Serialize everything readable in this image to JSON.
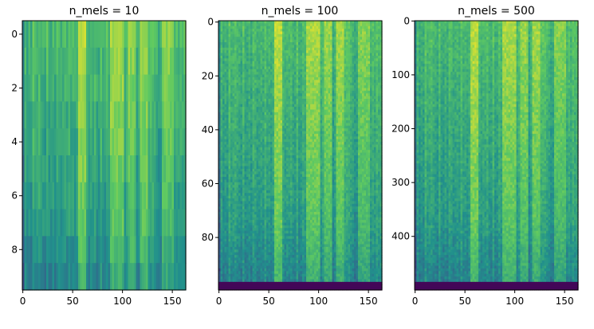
{
  "colormap": [
    "#440154",
    "#3b528b",
    "#21918c",
    "#5ec962",
    "#fde725"
  ],
  "chart_data": [
    {
      "type": "heatmap",
      "title": "n_mels = 10",
      "xlabel": "",
      "ylabel": "",
      "n_rows": 10,
      "n_cols": 164,
      "xlim": [
        -0.5,
        163.5
      ],
      "ylim": [
        9.5,
        -0.5
      ],
      "xticks": [
        0,
        50,
        100,
        150
      ],
      "xtick_labels": [
        "0",
        "50",
        "100",
        "150"
      ],
      "yticks": [
        0,
        2,
        4,
        6,
        8
      ],
      "ytick_labels": [
        "0",
        "2",
        "4",
        "6",
        "8"
      ],
      "grid": false,
      "colormap": "viridis"
    },
    {
      "type": "heatmap",
      "title": "n_mels = 100",
      "xlabel": "",
      "ylabel": "",
      "n_rows": 100,
      "n_cols": 164,
      "xlim": [
        -0.5,
        163.5
      ],
      "ylim": [
        99.5,
        -0.5
      ],
      "xticks": [
        0,
        50,
        100,
        150
      ],
      "xtick_labels": [
        "0",
        "50",
        "100",
        "150"
      ],
      "yticks": [
        0,
        20,
        40,
        60,
        80
      ],
      "ytick_labels": [
        "0",
        "20",
        "40",
        "60",
        "80"
      ],
      "grid": false,
      "colormap": "viridis"
    },
    {
      "type": "heatmap",
      "title": "n_mels = 500",
      "xlabel": "",
      "ylabel": "",
      "n_rows": 500,
      "n_cols": 164,
      "xlim": [
        -0.5,
        163.5
      ],
      "ylim": [
        499.5,
        -0.5
      ],
      "xticks": [
        0,
        50,
        100,
        150
      ],
      "xtick_labels": [
        "0",
        "50",
        "100",
        "150"
      ],
      "yticks": [
        0,
        100,
        200,
        300,
        400
      ],
      "ytick_labels": [
        "0",
        "100",
        "200",
        "300",
        "400"
      ],
      "grid": false,
      "colormap": "viridis"
    }
  ]
}
